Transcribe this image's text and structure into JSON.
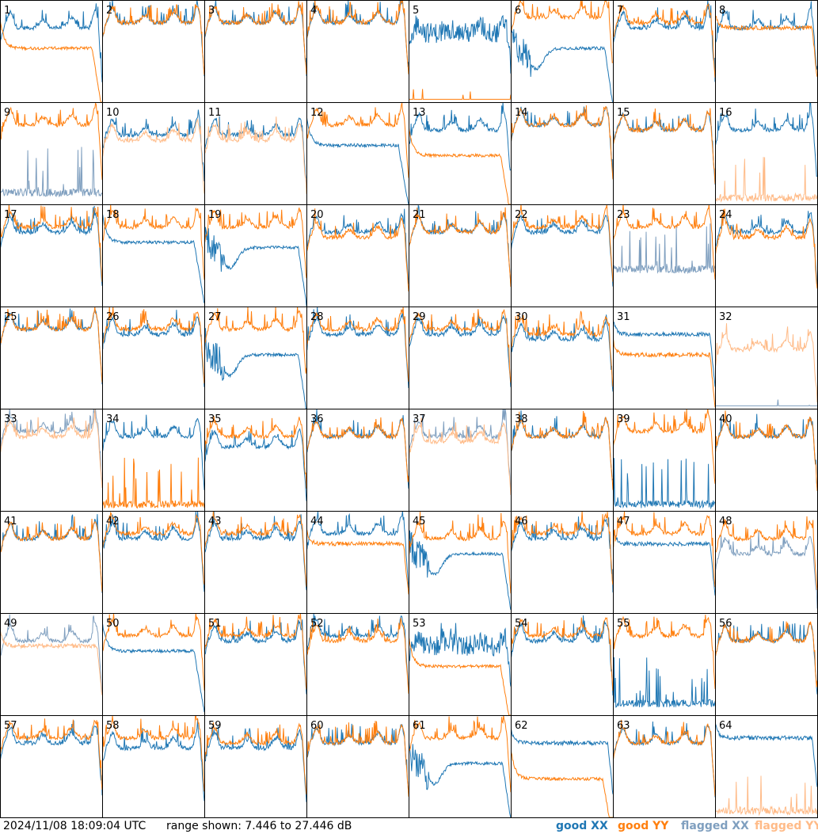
{
  "footer": {
    "timestamp": "2024/11/08 18:09:04 UTC",
    "range_text": "range shown: 7.446 to 27.446 dB"
  },
  "legend": [
    {
      "label": "good XX",
      "color": "#1f77b4"
    },
    {
      "label": "good YY",
      "color": "#ff7f0e"
    },
    {
      "label": "flagged XX",
      "color": "#7f9fbf"
    },
    {
      "label": "flagged YY",
      "color": "#ffbb88"
    }
  ],
  "chart_data": {
    "type": "line",
    "grid": {
      "rows": 8,
      "cols": 8
    },
    "ylim": [
      7.446,
      27.446
    ],
    "yunit": "dB",
    "series_legend": [
      "good XX",
      "good YY",
      "flagged XX",
      "flagged YY"
    ],
    "colors": {
      "good_xx": "#1f77b4",
      "good_yy": "#ff7f0e",
      "flagged_xx": "#7f9fbf",
      "flagged_yy": "#ffbb88"
    },
    "panels": [
      {
        "id": "1",
        "xx": {
          "shape": "normal",
          "level": 22,
          "flagged": false
        },
        "yy": {
          "shape": "drop",
          "level": 18,
          "flagged": false
        }
      },
      {
        "id": "2",
        "xx": {
          "shape": "normal",
          "level": 23,
          "flagged": false
        },
        "yy": {
          "shape": "normal",
          "level": 23,
          "flagged": false
        }
      },
      {
        "id": "3",
        "xx": {
          "shape": "normal",
          "level": 23,
          "flagged": false
        },
        "yy": {
          "shape": "normal",
          "level": 23,
          "flagged": false
        }
      },
      {
        "id": "4",
        "xx": {
          "shape": "normal",
          "level": 23,
          "flagged": false
        },
        "yy": {
          "shape": "normal",
          "level": 23,
          "flagged": false
        }
      },
      {
        "id": "5",
        "xx": {
          "shape": "noisy",
          "level": 21,
          "flagged": false
        },
        "yy": {
          "shape": "dead",
          "level": 8,
          "flagged": false
        }
      },
      {
        "id": "6",
        "xx": {
          "shape": "dip",
          "level": 18,
          "flagged": false
        },
        "yy": {
          "shape": "normal",
          "level": 24,
          "flagged": false
        }
      },
      {
        "id": "7",
        "xx": {
          "shape": "normal",
          "level": 22,
          "flagged": false
        },
        "yy": {
          "shape": "normal",
          "level": 23,
          "flagged": false
        }
      },
      {
        "id": "8",
        "xx": {
          "shape": "normal",
          "level": 22,
          "flagged": false
        },
        "yy": {
          "shape": "flat",
          "level": 22,
          "flagged": false
        }
      },
      {
        "id": "9",
        "xx": {
          "shape": "spiky",
          "level": 9,
          "flagged": true
        },
        "yy": {
          "shape": "normal",
          "level": 23,
          "flagged": false
        }
      },
      {
        "id": "10",
        "xx": {
          "shape": "normal",
          "level": 21,
          "flagged": false
        },
        "yy": {
          "shape": "normal",
          "level": 20,
          "flagged": true
        }
      },
      {
        "id": "11",
        "xx": {
          "shape": "normal",
          "level": 21,
          "flagged": false
        },
        "yy": {
          "shape": "normal",
          "level": 20,
          "flagged": true
        }
      },
      {
        "id": "12",
        "xx": {
          "shape": "drop",
          "level": 19,
          "flagged": false
        },
        "yy": {
          "shape": "normal",
          "level": 23,
          "flagged": false
        }
      },
      {
        "id": "13",
        "xx": {
          "shape": "normal",
          "level": 22,
          "flagged": false
        },
        "yy": {
          "shape": "drop",
          "level": 17,
          "flagged": false
        }
      },
      {
        "id": "14",
        "xx": {
          "shape": "normal",
          "level": 23,
          "flagged": false
        },
        "yy": {
          "shape": "normal",
          "level": 23,
          "flagged": false
        }
      },
      {
        "id": "15",
        "xx": {
          "shape": "normal",
          "level": 22,
          "flagged": false
        },
        "yy": {
          "shape": "normal",
          "level": 22,
          "flagged": false
        }
      },
      {
        "id": "16",
        "xx": {
          "shape": "normal",
          "level": 22,
          "flagged": false
        },
        "yy": {
          "shape": "spiky",
          "level": 8,
          "flagged": true
        }
      },
      {
        "id": "17",
        "xx": {
          "shape": "normal",
          "level": 22,
          "flagged": false
        },
        "yy": {
          "shape": "normal",
          "level": 23,
          "flagged": false
        }
      },
      {
        "id": "18",
        "xx": {
          "shape": "drop",
          "level": 20,
          "flagged": false
        },
        "yy": {
          "shape": "normal",
          "level": 23,
          "flagged": false
        }
      },
      {
        "id": "19",
        "xx": {
          "shape": "dip",
          "level": 19,
          "flagged": false
        },
        "yy": {
          "shape": "normal",
          "level": 23,
          "flagged": false
        }
      },
      {
        "id": "20",
        "xx": {
          "shape": "normal",
          "level": 22,
          "flagged": false
        },
        "yy": {
          "shape": "normal",
          "level": 21,
          "flagged": false
        }
      },
      {
        "id": "21",
        "xx": {
          "shape": "normal",
          "level": 22,
          "flagged": false
        },
        "yy": {
          "shape": "normal",
          "level": 22,
          "flagged": false
        }
      },
      {
        "id": "22",
        "xx": {
          "shape": "normal",
          "level": 22,
          "flagged": false
        },
        "yy": {
          "shape": "normal",
          "level": 23,
          "flagged": false
        }
      },
      {
        "id": "23",
        "xx": {
          "shape": "spiky",
          "level": 14,
          "flagged": true
        },
        "yy": {
          "shape": "normal",
          "level": 23,
          "flagged": false
        }
      },
      {
        "id": "24",
        "xx": {
          "shape": "normal",
          "level": 22,
          "flagged": false
        },
        "yy": {
          "shape": "normal",
          "level": 21,
          "flagged": false
        }
      },
      {
        "id": "25",
        "xx": {
          "shape": "normal",
          "level": 23,
          "flagged": false
        },
        "yy": {
          "shape": "normal",
          "level": 23,
          "flagged": false
        }
      },
      {
        "id": "26",
        "xx": {
          "shape": "normal",
          "level": 22,
          "flagged": false
        },
        "yy": {
          "shape": "normal",
          "level": 23,
          "flagged": false
        }
      },
      {
        "id": "27",
        "xx": {
          "shape": "dip",
          "level": 18,
          "flagged": false
        },
        "yy": {
          "shape": "normal",
          "level": 23,
          "flagged": false
        }
      },
      {
        "id": "28",
        "xx": {
          "shape": "normal",
          "level": 22,
          "flagged": false
        },
        "yy": {
          "shape": "normal",
          "level": 23,
          "flagged": false
        }
      },
      {
        "id": "29",
        "xx": {
          "shape": "normal",
          "level": 22,
          "flagged": false
        },
        "yy": {
          "shape": "normal",
          "level": 23,
          "flagged": false
        }
      },
      {
        "id": "30",
        "xx": {
          "shape": "normal",
          "level": 21,
          "flagged": false
        },
        "yy": {
          "shape": "normal",
          "level": 22,
          "flagged": false
        }
      },
      {
        "id": "31",
        "xx": {
          "shape": "flat",
          "level": 22,
          "flagged": false
        },
        "yy": {
          "shape": "flat",
          "level": 18,
          "flagged": false
        }
      },
      {
        "id": "32",
        "xx": {
          "shape": "dead",
          "level": 8,
          "flagged": true
        },
        "yy": {
          "shape": "normal",
          "level": 19,
          "flagged": true
        }
      },
      {
        "id": "33",
        "xx": {
          "shape": "normal",
          "level": 23,
          "flagged": true
        },
        "yy": {
          "shape": "normal",
          "level": 22,
          "flagged": true
        }
      },
      {
        "id": "34",
        "xx": {
          "shape": "normal",
          "level": 22,
          "flagged": false
        },
        "yy": {
          "shape": "spiky",
          "level": 8,
          "flagged": false
        }
      },
      {
        "id": "35",
        "xx": {
          "shape": "normal",
          "level": 20,
          "flagged": false
        },
        "yy": {
          "shape": "normal",
          "level": 22,
          "flagged": false
        }
      },
      {
        "id": "36",
        "xx": {
          "shape": "normal",
          "level": 22,
          "flagged": false
        },
        "yy": {
          "shape": "normal",
          "level": 22,
          "flagged": false
        }
      },
      {
        "id": "37",
        "xx": {
          "shape": "normal",
          "level": 22,
          "flagged": true
        },
        "yy": {
          "shape": "normal",
          "level": 21,
          "flagged": true
        }
      },
      {
        "id": "38",
        "xx": {
          "shape": "normal",
          "level": 22,
          "flagged": false
        },
        "yy": {
          "shape": "normal",
          "level": 22,
          "flagged": false
        }
      },
      {
        "id": "39",
        "xx": {
          "shape": "spiky",
          "level": 8,
          "flagged": false
        },
        "yy": {
          "shape": "normal",
          "level": 23,
          "flagged": false
        }
      },
      {
        "id": "40",
        "xx": {
          "shape": "normal",
          "level": 22,
          "flagged": false
        },
        "yy": {
          "shape": "normal",
          "level": 22,
          "flagged": false
        }
      },
      {
        "id": "41",
        "xx": {
          "shape": "normal",
          "level": 22,
          "flagged": false
        },
        "yy": {
          "shape": "normal",
          "level": 22,
          "flagged": false
        }
      },
      {
        "id": "42",
        "xx": {
          "shape": "normal",
          "level": 22,
          "flagged": false
        },
        "yy": {
          "shape": "normal",
          "level": 23,
          "flagged": false
        }
      },
      {
        "id": "43",
        "xx": {
          "shape": "normal",
          "level": 22,
          "flagged": false
        },
        "yy": {
          "shape": "normal",
          "level": 23,
          "flagged": false
        }
      },
      {
        "id": "44",
        "xx": {
          "shape": "normal",
          "level": 23,
          "flagged": false
        },
        "yy": {
          "shape": "flat",
          "level": 21,
          "flagged": false
        }
      },
      {
        "id": "45",
        "xx": {
          "shape": "dip",
          "level": 19,
          "flagged": false
        },
        "yy": {
          "shape": "normal",
          "level": 22,
          "flagged": false
        }
      },
      {
        "id": "46",
        "xx": {
          "shape": "normal",
          "level": 22,
          "flagged": false
        },
        "yy": {
          "shape": "normal",
          "level": 23,
          "flagged": false
        }
      },
      {
        "id": "47",
        "xx": {
          "shape": "flat",
          "level": 21,
          "flagged": false
        },
        "yy": {
          "shape": "normal",
          "level": 23,
          "flagged": false
        }
      },
      {
        "id": "48",
        "xx": {
          "shape": "normal",
          "level": 19,
          "flagged": true
        },
        "yy": {
          "shape": "normal",
          "level": 22,
          "flagged": false
        }
      },
      {
        "id": "49",
        "xx": {
          "shape": "normal",
          "level": 22,
          "flagged": true
        },
        "yy": {
          "shape": "flat",
          "level": 21,
          "flagged": true
        }
      },
      {
        "id": "50",
        "xx": {
          "shape": "drop",
          "level": 20,
          "flagged": false
        },
        "yy": {
          "shape": "normal",
          "level": 23,
          "flagged": false
        }
      },
      {
        "id": "51",
        "xx": {
          "shape": "normal",
          "level": 22,
          "flagged": false
        },
        "yy": {
          "shape": "normal",
          "level": 23,
          "flagged": false
        }
      },
      {
        "id": "52",
        "xx": {
          "shape": "normal",
          "level": 23,
          "flagged": false
        },
        "yy": {
          "shape": "normal",
          "level": 22,
          "flagged": false
        }
      },
      {
        "id": "53",
        "xx": {
          "shape": "noisy",
          "level": 21,
          "flagged": false
        },
        "yy": {
          "shape": "drop",
          "level": 17,
          "flagged": false
        }
      },
      {
        "id": "54",
        "xx": {
          "shape": "normal",
          "level": 22,
          "flagged": false
        },
        "yy": {
          "shape": "normal",
          "level": 23,
          "flagged": false
        }
      },
      {
        "id": "55",
        "xx": {
          "shape": "spiky",
          "level": 9,
          "flagged": false
        },
        "yy": {
          "shape": "normal",
          "level": 23,
          "flagged": false
        }
      },
      {
        "id": "56",
        "xx": {
          "shape": "normal",
          "level": 22,
          "flagged": false
        },
        "yy": {
          "shape": "normal",
          "level": 22,
          "flagged": false
        }
      },
      {
        "id": "57",
        "xx": {
          "shape": "normal",
          "level": 22,
          "flagged": false
        },
        "yy": {
          "shape": "normal",
          "level": 23,
          "flagged": false
        }
      },
      {
        "id": "58",
        "xx": {
          "shape": "normal",
          "level": 21,
          "flagged": false
        },
        "yy": {
          "shape": "normal",
          "level": 23,
          "flagged": false
        }
      },
      {
        "id": "59",
        "xx": {
          "shape": "normal",
          "level": 21,
          "flagged": false
        },
        "yy": {
          "shape": "normal",
          "level": 22,
          "flagged": false
        }
      },
      {
        "id": "60",
        "xx": {
          "shape": "normal",
          "level": 22,
          "flagged": false
        },
        "yy": {
          "shape": "normal",
          "level": 22,
          "flagged": false
        }
      },
      {
        "id": "61",
        "xx": {
          "shape": "dip",
          "level": 18,
          "flagged": false
        },
        "yy": {
          "shape": "normal",
          "level": 23,
          "flagged": false
        }
      },
      {
        "id": "62",
        "xx": {
          "shape": "flat",
          "level": 22,
          "flagged": false
        },
        "yy": {
          "shape": "drop",
          "level": 15,
          "flagged": false
        }
      },
      {
        "id": "63",
        "xx": {
          "shape": "normal",
          "level": 22,
          "flagged": false
        },
        "yy": {
          "shape": "normal",
          "level": 22,
          "flagged": false
        }
      },
      {
        "id": "64",
        "xx": {
          "shape": "flat",
          "level": 23,
          "flagged": false
        },
        "yy": {
          "shape": "spiky",
          "level": 8,
          "flagged": true
        }
      }
    ]
  }
}
